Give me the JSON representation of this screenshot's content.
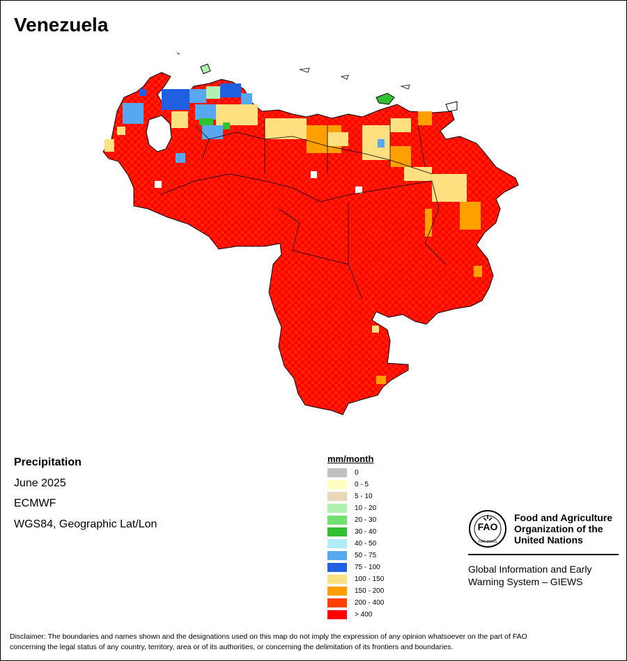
{
  "title": "Venezuela",
  "info": {
    "variable": "Precipitation",
    "period": "June 2025",
    "source": "ECMWF",
    "projection": "WGS84, Geographic Lat/Lon"
  },
  "legend": {
    "unit": "mm/month",
    "classes": [
      {
        "label": "0",
        "color": "#c0c0c0"
      },
      {
        "label": "0 - 5",
        "color": "#ffffc0"
      },
      {
        "label": "5 - 10",
        "color": "#e8d8b8"
      },
      {
        "label": "10 - 20",
        "color": "#b0f0b0"
      },
      {
        "label": "20 - 30",
        "color": "#70e070"
      },
      {
        "label": "30 - 40",
        "color": "#30c030"
      },
      {
        "label": "40 - 50",
        "color": "#b0ecf4"
      },
      {
        "label": "50 - 75",
        "color": "#58a8f0"
      },
      {
        "label": "75 - 100",
        "color": "#2060e0"
      },
      {
        "label": "100 - 150",
        "color": "#ffe080"
      },
      {
        "label": "150 - 200",
        "color": "#ffa000"
      },
      {
        "label": "200 - 400",
        "color": "#ff4000"
      },
      {
        "label": "> 400",
        "color": "#ff0000"
      }
    ]
  },
  "fao": {
    "line1": "Food and Agriculture",
    "line2": "Organization of the",
    "line3": "United Nations",
    "logo_text": "FAO",
    "motto": "FIAT PANIS",
    "giews1": "Global Information and Early",
    "giews2": "Warning System – GIEWS"
  },
  "disclaimer": {
    "line1": "Disclaimer: The boundaries and names shown and the designations used on this map do not imply the expression of any opinion whatsoever on the part of FAO",
    "line2": "concerning the legal status of any country, territory, area or of its authorities, or concerning the delimitation of its frontiers and boundaries."
  }
}
